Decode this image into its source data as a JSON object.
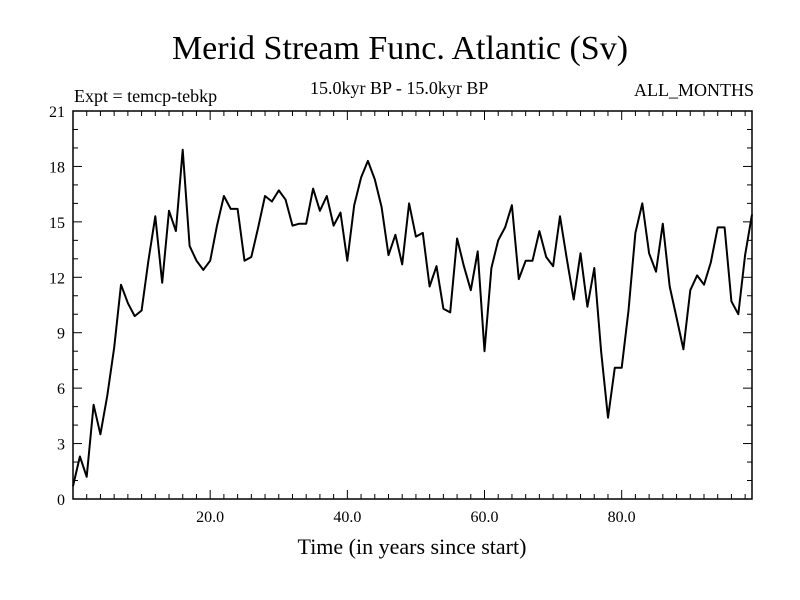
{
  "header": {
    "title": "Merid Stream Func. Atlantic (Sv)",
    "subtitle": "15.0kyr BP - 15.0kyr BP",
    "expt": "Expt = temcp-tebkp",
    "months": "ALL_MONTHS"
  },
  "chart_data": {
    "type": "line",
    "title": "Merid Stream Func. Atlantic (Sv)",
    "xlabel": "Time (in years since start)",
    "ylabel": "",
    "xlim": [
      0,
      99
    ],
    "ylim": [
      0,
      21
    ],
    "x_ticks": [
      20,
      40,
      60,
      80
    ],
    "x_tick_labels": [
      "20.0",
      "40.0",
      "60.0",
      "80.0"
    ],
    "y_ticks": [
      0,
      3,
      6,
      9,
      12,
      15,
      18,
      21
    ],
    "y_tick_labels": [
      "0",
      "3",
      "6",
      "9",
      "12",
      "15",
      "18",
      "21"
    ],
    "series": [
      {
        "name": "Merid Stream Func. Atlantic",
        "x": [
          0,
          1,
          2,
          3,
          4,
          5,
          6,
          7,
          8,
          9,
          10,
          11,
          12,
          13,
          14,
          15,
          16,
          17,
          18,
          19,
          20,
          21,
          22,
          23,
          24,
          25,
          26,
          27,
          28,
          29,
          30,
          31,
          32,
          33,
          34,
          35,
          36,
          37,
          38,
          39,
          40,
          41,
          42,
          43,
          44,
          45,
          46,
          47,
          48,
          49,
          50,
          51,
          52,
          53,
          54,
          55,
          56,
          57,
          58,
          59,
          60,
          61,
          62,
          63,
          64,
          65,
          66,
          67,
          68,
          69,
          70,
          71,
          72,
          73,
          74,
          75,
          76,
          77,
          78,
          79,
          80,
          81,
          82,
          83,
          84,
          85,
          86,
          87,
          88,
          89,
          90,
          91,
          92,
          93,
          94,
          95,
          96,
          97,
          98,
          99
        ],
        "y": [
          0.7,
          2.3,
          1.2,
          5.1,
          3.5,
          5.6,
          8.2,
          11.6,
          10.6,
          9.9,
          10.2,
          12.9,
          15.3,
          11.7,
          15.6,
          14.5,
          18.9,
          13.7,
          12.9,
          12.4,
          12.9,
          14.8,
          16.4,
          15.7,
          15.7,
          12.9,
          13.1,
          14.7,
          16.4,
          16.1,
          16.7,
          16.2,
          14.8,
          14.9,
          14.9,
          16.8,
          15.6,
          16.4,
          14.8,
          15.5,
          12.9,
          15.9,
          17.4,
          18.3,
          17.3,
          15.8,
          13.2,
          14.3,
          12.7,
          16.0,
          14.2,
          14.4,
          11.5,
          12.6,
          10.3,
          10.1,
          14.1,
          12.6,
          11.3,
          13.4,
          8.0,
          12.5,
          14.0,
          14.7,
          15.9,
          11.9,
          12.9,
          12.9,
          14.5,
          13.1,
          12.6,
          15.3,
          13.0,
          10.8,
          13.3,
          10.4,
          12.5,
          8.0,
          4.4,
          7.1,
          7.1,
          10.2,
          14.4,
          16.0,
          13.3,
          12.3,
          14.9,
          11.5,
          9.8,
          8.1,
          11.3,
          12.1,
          11.6,
          12.8,
          14.7,
          14.7,
          10.7,
          10.0,
          13.2,
          15.4
        ]
      }
    ]
  }
}
